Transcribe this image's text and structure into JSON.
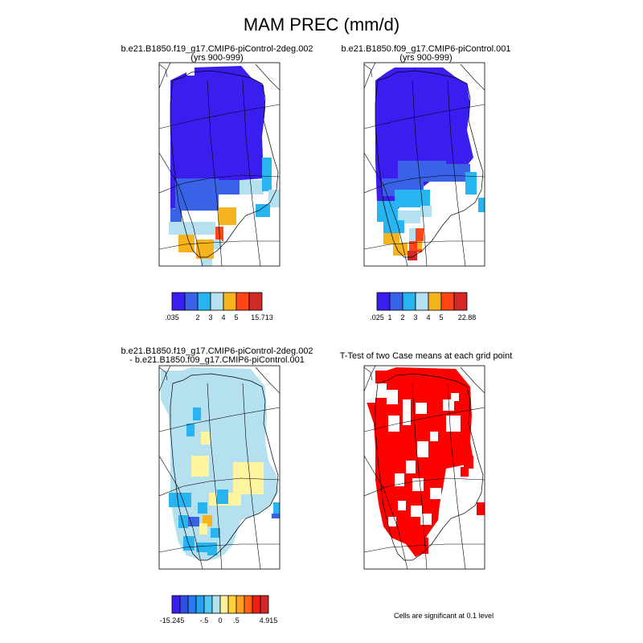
{
  "figure": {
    "main_title": "MAM PREC (mm/d)"
  },
  "panels": [
    {
      "id": "p1",
      "title_line1": "b.e21.B1850.f19_g17.CMIP6-piControl-2deg.002",
      "title_line2": "(yrs 900-999)"
    },
    {
      "id": "p2",
      "title_line1": "b.e21.B1850.f09_g17.CMIP6-piControl.001",
      "title_line2": "(yrs 900-999)"
    },
    {
      "id": "p3",
      "title_line1": "b.e21.B1850.f19_g17.CMIP6-piControl-2deg.002",
      "title_line2": "- b.e21.B1850.f09_g17.CMIP6-piControl.001"
    },
    {
      "id": "p4",
      "title_line1": "T-Test of two Case means at each grid point",
      "title_line2": ""
    }
  ],
  "colorbars": {
    "cb1": {
      "colors": [
        "#3a1ef0",
        "#3a62e6",
        "#28b4f0",
        "#b4e0f0",
        "#f5b41e",
        "#ff4614",
        "#d22828"
      ],
      "labels": [
        ".035",
        "2",
        "3",
        "4",
        "5",
        "15.713"
      ],
      "label_edges": [
        0,
        2,
        3,
        4,
        5,
        7
      ]
    },
    "cb2": {
      "colors": [
        "#3a1ef0",
        "#3a62e6",
        "#28b4f0",
        "#b4e0f0",
        "#f5b41e",
        "#ff4614",
        "#d22828"
      ],
      "labels": [
        ".025",
        "1",
        "2",
        "3",
        "4",
        "5",
        "22.88"
      ],
      "label_edges": [
        0,
        1,
        2,
        3,
        4,
        5,
        7
      ]
    },
    "cb3": {
      "colors": [
        "#3a1ef0",
        "#3250e6",
        "#2878f0",
        "#28a0f0",
        "#50c8f0",
        "#b4e0f0",
        "#fff0a0",
        "#ffd23c",
        "#ffa01e",
        "#ff6414",
        "#f01e14",
        "#d22828"
      ],
      "labels": [
        "-15.245",
        "-.5",
        "0",
        ".5",
        "4.915"
      ],
      "label_edges": [
        0,
        4,
        6,
        8,
        12
      ]
    }
  },
  "significance_note": "Cells are significant at 0.1 level",
  "colors": {
    "deep_blue": "#3a1ef0",
    "mid_blue": "#3a62e6",
    "cyan": "#28b4f0",
    "light_blue": "#b4e0f0",
    "orange": "#f5b41e",
    "red_orange": "#ff4614",
    "dark_red": "#d22828",
    "pale_yellow": "#fff5a0",
    "significant_red": "#ff0000"
  }
}
